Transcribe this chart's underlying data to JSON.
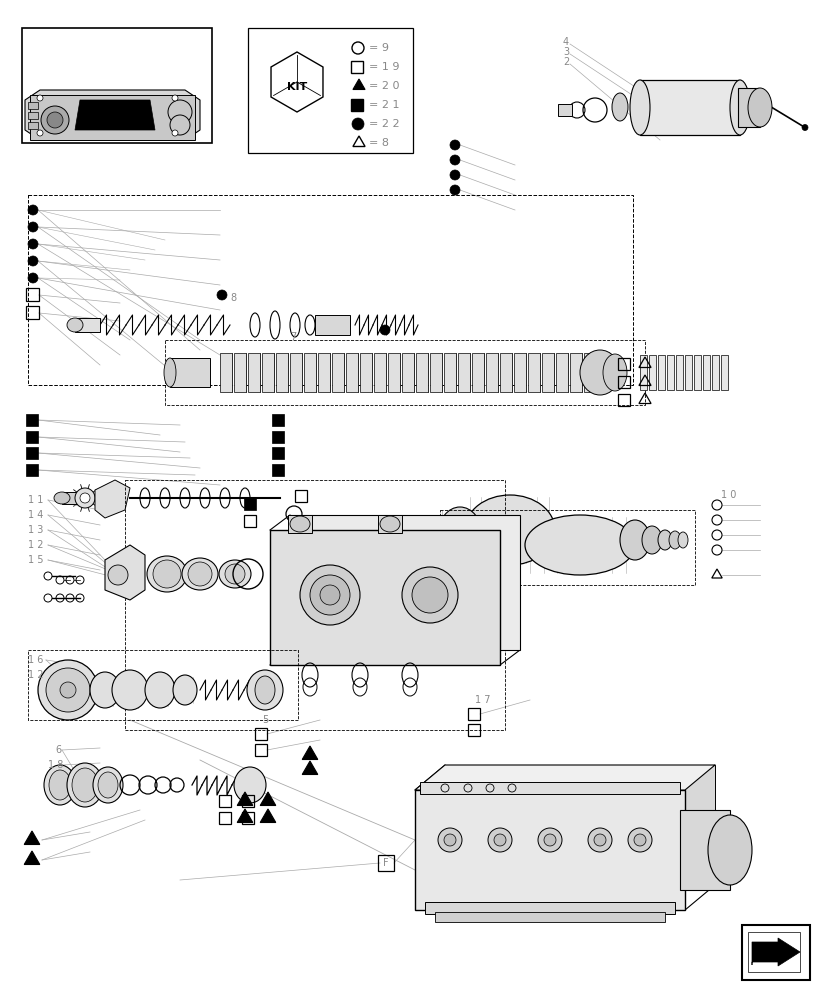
{
  "bg": "#ffffff",
  "lc": "#000000",
  "gray": "#888888",
  "lgray": "#aaaaaa",
  "dgray": "#555555"
}
